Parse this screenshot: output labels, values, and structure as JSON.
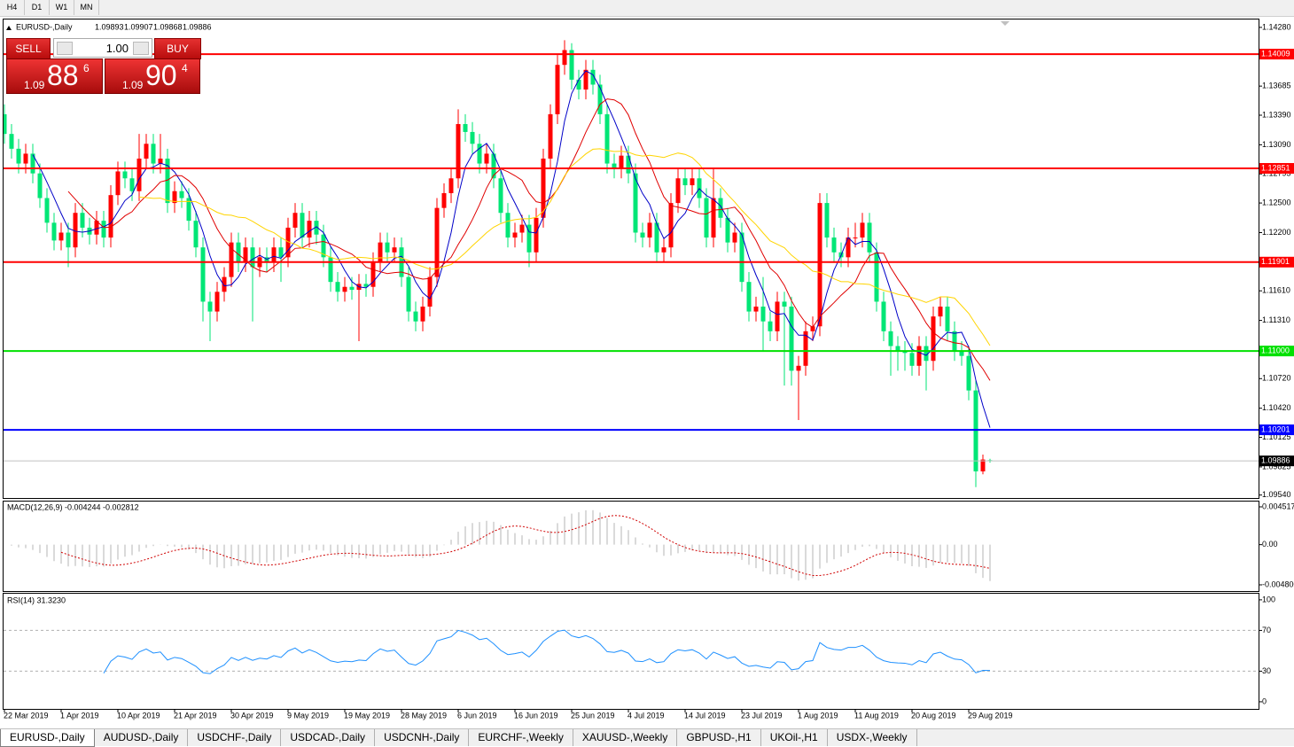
{
  "toolbar": {
    "timeframes": [
      "H4",
      "D1",
      "W1",
      "MN"
    ]
  },
  "trade_panel": {
    "sell_label": "SELL",
    "buy_label": "BUY",
    "lot": "1.00",
    "sell": {
      "prefix": "1.09",
      "pips": "88",
      "point": "6"
    },
    "buy": {
      "prefix": "1.09",
      "pips": "90",
      "point": "4"
    }
  },
  "chart_data": [
    {
      "type": "candlestick",
      "title": "EURUSD-,Daily",
      "up_color": "#ff0000",
      "down_color": "#00e676",
      "ma_colors": [
        "#0000c8",
        "#e00000",
        "#ffd400"
      ],
      "ylim": [
        1.0951,
        1.1436
      ],
      "yticks": [
        {
          "value": 1.1428,
          "label": "1.14280"
        },
        1.13685,
        {
          "value": 1.1339,
          "label": "1.13390"
        },
        {
          "value": 1.1309,
          "label": "1.13090"
        },
        1.12795,
        {
          "value": 1.125,
          "label": "1.12500"
        },
        {
          "value": 1.122,
          "label": "1.12200"
        },
        {
          "value": 1.1161,
          "label": "1.11610"
        },
        {
          "value": 1.1131,
          "label": "1.11310"
        },
        {
          "value": 1.1072,
          "label": "1.10720"
        },
        {
          "value": 1.1042,
          "label": "1.10420"
        },
        1.10125,
        1.09825,
        {
          "value": 1.0954,
          "label": "1.09540"
        }
      ],
      "levels": [
        {
          "value": 1.14009,
          "color": "#ff0000"
        },
        {
          "value": 1.12851,
          "color": "#ff0000"
        },
        {
          "value": 1.11901,
          "color": "#ff0000"
        },
        {
          "value": 1.11,
          "label": "1.11000",
          "color": "#00e000"
        },
        {
          "value": 1.10201,
          "color": "#0000ff"
        }
      ],
      "categories": [
        "22 Mar 2019",
        null,
        null,
        null,
        null,
        null,
        null,
        null,
        "1 Apr 2019",
        null,
        null,
        null,
        null,
        null,
        null,
        null,
        "10 Apr 2019",
        null,
        null,
        null,
        null,
        null,
        null,
        null,
        "21 Apr 2019",
        null,
        null,
        null,
        null,
        null,
        null,
        null,
        "30 Apr 2019",
        null,
        null,
        null,
        null,
        null,
        null,
        null,
        "9 May 2019",
        null,
        null,
        null,
        null,
        null,
        null,
        null,
        "19 May 2019",
        null,
        null,
        null,
        null,
        null,
        null,
        null,
        "28 May 2019",
        null,
        null,
        null,
        null,
        null,
        null,
        null,
        "6 Jun 2019",
        null,
        null,
        null,
        null,
        null,
        null,
        null,
        "16 Jun 2019",
        null,
        null,
        null,
        null,
        null,
        null,
        null,
        "25 Jun 2019",
        null,
        null,
        null,
        null,
        null,
        null,
        null,
        "4 Jul 2019",
        null,
        null,
        null,
        null,
        null,
        null,
        null,
        "14 Jul 2019",
        null,
        null,
        null,
        null,
        null,
        null,
        null,
        "23 Jul 2019",
        null,
        null,
        null,
        null,
        null,
        null,
        null,
        "1 Aug 2019",
        null,
        null,
        null,
        null,
        null,
        null,
        null,
        "11 Aug 2019",
        null,
        null,
        null,
        null,
        null,
        null,
        null,
        "20 Aug 2019",
        null,
        null,
        null,
        null,
        null,
        null,
        null,
        "29 Aug 2019",
        null,
        null,
        null
      ],
      "open": [
        1.134,
        1.132,
        1.1305,
        1.129,
        1.13,
        1.128,
        1.1255,
        1.123,
        1.1212,
        1.122,
        1.1205,
        1.124,
        1.1225,
        1.1218,
        1.1232,
        1.1215,
        1.1258,
        1.1282,
        1.1275,
        1.1262,
        1.1295,
        1.131,
        1.129,
        1.1295,
        1.125,
        1.1262,
        1.1255,
        1.1232,
        1.1205,
        1.115,
        1.114,
        1.116,
        1.1175,
        1.121,
        1.119,
        1.1205,
        1.1185,
        1.1195,
        1.119,
        1.1205,
        1.1195,
        1.1225,
        1.124,
        1.1215,
        1.1232,
        1.1218,
        1.1195,
        1.117,
        1.116,
        1.1165,
        1.1162,
        1.1168,
        1.1165,
        1.119,
        1.121,
        1.12,
        1.1205,
        1.1175,
        1.114,
        1.113,
        1.1145,
        1.1175,
        1.1245,
        1.126,
        1.1275,
        1.133,
        1.1322,
        1.131,
        1.129,
        1.13,
        1.1275,
        1.124,
        1.1215,
        1.122,
        1.1228,
        1.12,
        1.1235,
        1.1295,
        1.134,
        1.139,
        1.1405,
        1.1375,
        1.1365,
        1.1385,
        1.137,
        1.134,
        1.129,
        1.1285,
        1.1298,
        1.128,
        1.122,
        1.1215,
        1.123,
        1.12,
        1.1205,
        1.125,
        1.1275,
        1.1268,
        1.1275,
        1.1255,
        1.1215,
        1.1255,
        1.1235,
        1.121,
        1.122,
        1.117,
        1.114,
        1.1145,
        1.113,
        1.112,
        1.115,
        1.1145,
        1.108,
        1.1085,
        1.112,
        1.1125,
        1.125,
        1.1215,
        1.12,
        1.1195,
        1.1215,
        1.1215,
        1.123,
        1.12,
        1.115,
        1.112,
        1.1105,
        1.11,
        1.1098,
        1.1085,
        1.1105,
        1.109,
        1.1135,
        1.1145,
        1.112,
        1.11,
        1.1095,
        1.106,
        1.0978,
        1.09893
      ],
      "high": [
        1.135,
        1.133,
        1.1315,
        1.131,
        1.131,
        1.129,
        1.1265,
        1.124,
        1.123,
        1.123,
        1.125,
        1.125,
        1.1235,
        1.1242,
        1.1242,
        1.1268,
        1.1292,
        1.1292,
        1.1285,
        1.132,
        1.132,
        1.132,
        1.132,
        1.1305,
        1.1272,
        1.1272,
        1.1265,
        1.1242,
        1.1215,
        1.116,
        1.117,
        1.1185,
        1.122,
        1.122,
        1.1215,
        1.1215,
        1.1205,
        1.1205,
        1.1215,
        1.1215,
        1.1235,
        1.125,
        1.125,
        1.1242,
        1.1242,
        1.1228,
        1.1205,
        1.118,
        1.1175,
        1.1175,
        1.1178,
        1.1178,
        1.12,
        1.122,
        1.122,
        1.1215,
        1.1215,
        1.1185,
        1.115,
        1.1155,
        1.1185,
        1.1255,
        1.127,
        1.1285,
        1.1345,
        1.134,
        1.1332,
        1.132,
        1.131,
        1.131,
        1.1285,
        1.125,
        1.123,
        1.1238,
        1.1238,
        1.1245,
        1.1305,
        1.135,
        1.14,
        1.1415,
        1.1412,
        1.1385,
        1.1395,
        1.1395,
        1.138,
        1.135,
        1.13,
        1.1308,
        1.1308,
        1.129,
        1.123,
        1.124,
        1.124,
        1.1215,
        1.126,
        1.1285,
        1.1285,
        1.1285,
        1.1285,
        1.1265,
        1.1285,
        1.1265,
        1.1245,
        1.123,
        1.123,
        1.118,
        1.1155,
        1.1175,
        1.114,
        1.116,
        1.116,
        1.1155,
        1.1095,
        1.113,
        1.1135,
        1.126,
        1.126,
        1.1225,
        1.121,
        1.1225,
        1.123,
        1.124,
        1.124,
        1.121,
        1.116,
        1.113,
        1.1115,
        1.111,
        1.1108,
        1.1115,
        1.1115,
        1.1145,
        1.1155,
        1.1155,
        1.113,
        1.111,
        1.1105,
        1.107,
        1.0995,
        1.09907
      ],
      "low": [
        1.131,
        1.1295,
        1.128,
        1.128,
        1.127,
        1.1245,
        1.122,
        1.1202,
        1.1202,
        1.1185,
        1.1195,
        1.1215,
        1.1208,
        1.1208,
        1.1205,
        1.1205,
        1.1248,
        1.1265,
        1.1252,
        1.1252,
        1.1285,
        1.128,
        1.128,
        1.124,
        1.124,
        1.1245,
        1.1222,
        1.1195,
        1.113,
        1.111,
        1.113,
        1.115,
        1.1165,
        1.118,
        1.118,
        1.113,
        1.1175,
        1.118,
        1.118,
        1.117,
        1.1185,
        1.1215,
        1.1205,
        1.1205,
        1.1208,
        1.1185,
        1.116,
        1.115,
        1.115,
        1.1152,
        1.111,
        1.1155,
        1.1155,
        1.118,
        1.119,
        1.119,
        1.1165,
        1.113,
        1.112,
        1.112,
        1.1135,
        1.1165,
        1.1235,
        1.125,
        1.1265,
        1.1312,
        1.13,
        1.128,
        1.128,
        1.1265,
        1.123,
        1.1205,
        1.1205,
        1.121,
        1.1185,
        1.119,
        1.1225,
        1.1285,
        1.133,
        1.138,
        1.1365,
        1.1355,
        1.1355,
        1.136,
        1.133,
        1.128,
        1.1275,
        1.1275,
        1.127,
        1.121,
        1.1205,
        1.1205,
        1.119,
        1.119,
        1.1195,
        1.124,
        1.1258,
        1.1258,
        1.1245,
        1.1205,
        1.1205,
        1.1225,
        1.12,
        1.12,
        1.116,
        1.113,
        1.113,
        1.11,
        1.111,
        1.111,
        1.1065,
        1.1065,
        1.103,
        1.1075,
        1.111,
        1.1115,
        1.1205,
        1.119,
        1.1185,
        1.1185,
        1.1205,
        1.1205,
        1.119,
        1.114,
        1.111,
        1.1075,
        1.108,
        1.108,
        1.1075,
        1.1075,
        1.106,
        1.108,
        1.1125,
        1.111,
        1.109,
        1.1085,
        1.105,
        1.0962,
        1.0975,
        1.09868
      ],
      "close": [
        1.132,
        1.1305,
        1.129,
        1.13,
        1.128,
        1.1255,
        1.123,
        1.1212,
        1.122,
        1.1205,
        1.124,
        1.1225,
        1.1218,
        1.1232,
        1.1215,
        1.1258,
        1.1282,
        1.1275,
        1.1262,
        1.1295,
        1.131,
        1.129,
        1.1295,
        1.125,
        1.1262,
        1.1255,
        1.1232,
        1.1205,
        1.115,
        1.114,
        1.116,
        1.1175,
        1.121,
        1.119,
        1.1205,
        1.1185,
        1.1195,
        1.119,
        1.1205,
        1.1195,
        1.1225,
        1.124,
        1.1215,
        1.1232,
        1.1218,
        1.1195,
        1.117,
        1.116,
        1.1165,
        1.1162,
        1.1168,
        1.1165,
        1.119,
        1.121,
        1.12,
        1.1205,
        1.1175,
        1.114,
        1.113,
        1.1145,
        1.1175,
        1.1245,
        1.126,
        1.1275,
        1.133,
        1.1322,
        1.131,
        1.129,
        1.13,
        1.1275,
        1.124,
        1.1215,
        1.122,
        1.1228,
        1.12,
        1.1235,
        1.1295,
        1.134,
        1.139,
        1.1405,
        1.1375,
        1.1365,
        1.1385,
        1.137,
        1.134,
        1.129,
        1.1285,
        1.1298,
        1.128,
        1.122,
        1.1215,
        1.123,
        1.12,
        1.1205,
        1.125,
        1.1275,
        1.1268,
        1.1275,
        1.1255,
        1.1215,
        1.1255,
        1.1235,
        1.121,
        1.122,
        1.117,
        1.114,
        1.1145,
        1.113,
        1.112,
        1.115,
        1.1145,
        1.108,
        1.1085,
        1.112,
        1.1125,
        1.125,
        1.1215,
        1.12,
        1.1195,
        1.1215,
        1.1215,
        1.123,
        1.12,
        1.115,
        1.112,
        1.1105,
        1.11,
        1.1098,
        1.1085,
        1.1105,
        1.109,
        1.1135,
        1.1145,
        1.112,
        1.11,
        1.1095,
        1.106,
        1.0978,
        1.099,
        1.09886
      ]
    },
    {
      "type": "macd",
      "title": "MACD(12,26,9) -0.004244 -0.002812",
      "ylim": [
        -0.00554,
        0.00515
      ],
      "yticks": [
        0.004517,
        {
          "value": 0,
          "label": "0.00"
        },
        {
          "value": -0.0048,
          "label": "-0.004800"
        }
      ],
      "colors": [
        "#b4b4b4",
        "#d00000"
      ]
    },
    {
      "type": "rsi",
      "title": "RSI(14) 31.3230",
      "ylim": [
        -7,
        106
      ],
      "yticks": [
        100,
        70,
        30,
        0
      ],
      "color": "#1e90ff"
    }
  ],
  "tabs": [
    "EURUSD-,Daily",
    "AUDUSD-,Daily",
    "USDCHF-,Daily",
    "USDCAD-,Daily",
    "USDCNH-,Daily",
    "EURCHF-,Weekly",
    "XAUUSD-,Weekly",
    "GBPUSD-,H1",
    "UKOil-,H1",
    "USDX-,Weekly"
  ]
}
